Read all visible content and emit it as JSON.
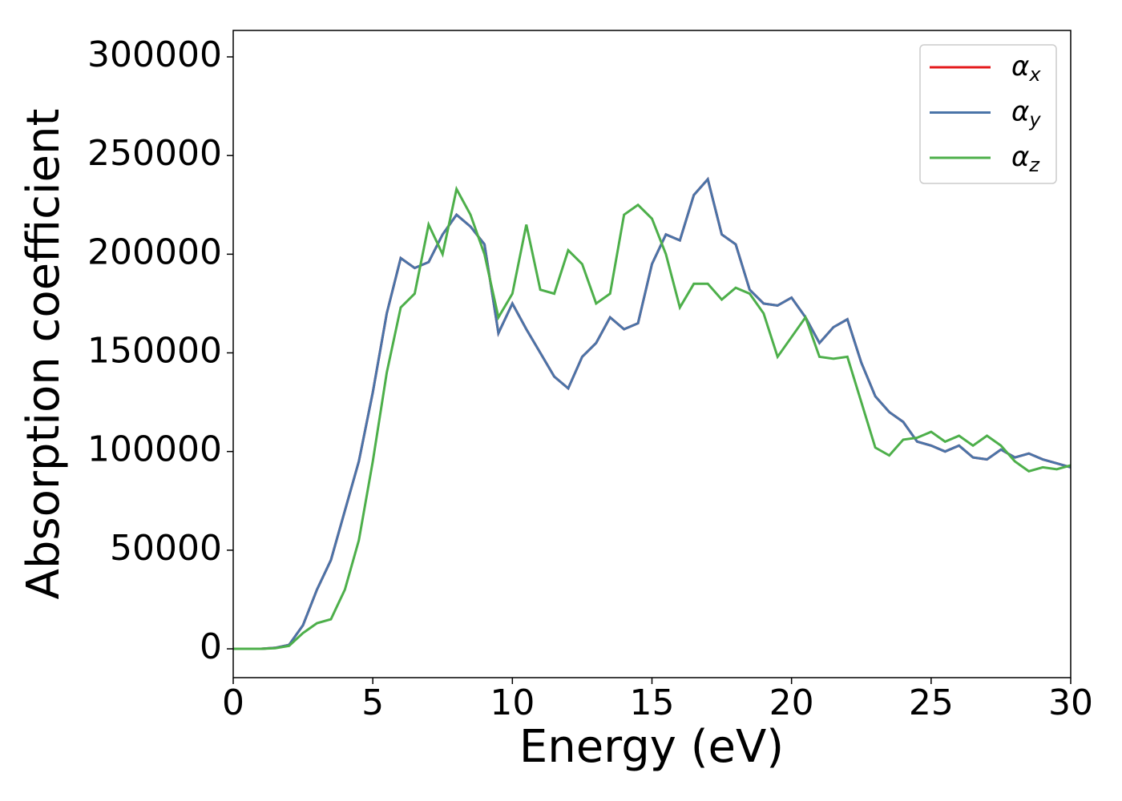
{
  "chart_data": {
    "type": "line",
    "xlabel": "Energy (eV)",
    "ylabel": "Absorption coefficient",
    "x": [
      0,
      0.5,
      1,
      1.5,
      2,
      2.5,
      3,
      3.5,
      4,
      4.5,
      5,
      5.5,
      6,
      6.5,
      7,
      7.5,
      8,
      8.5,
      9,
      9.5,
      10,
      10.5,
      11,
      11.5,
      12,
      12.5,
      13,
      13.5,
      14,
      14.5,
      15,
      15.5,
      16,
      16.5,
      17,
      17.5,
      18,
      18.5,
      19,
      19.5,
      20,
      20.5,
      21,
      21.5,
      22,
      22.5,
      23,
      23.5,
      24,
      24.5,
      25,
      25.5,
      26,
      26.5,
      27,
      27.5,
      28,
      28.5,
      29,
      29.5,
      30
    ],
    "series": [
      {
        "name": "αx",
        "color": "#e41a1c",
        "values": [
          0,
          0,
          0,
          500,
          2000,
          12000,
          30000,
          45000,
          70000,
          95000,
          130000,
          170000,
          198000,
          193000,
          196000,
          210000,
          220000,
          214000,
          205000,
          160000,
          175000,
          162000,
          150000,
          138000,
          132000,
          148000,
          155000,
          168000,
          162000,
          165000,
          195000,
          210000,
          207000,
          230000,
          238000,
          210000,
          205000,
          182000,
          175000,
          174000,
          178000,
          168000,
          155000,
          163000,
          167000,
          145000,
          128000,
          120000,
          115000,
          105000,
          103000,
          100000,
          103000,
          97000,
          96000,
          101000,
          97000,
          99000,
          96000,
          94000,
          92000
        ]
      },
      {
        "name": "αy",
        "color": "#4a74a8",
        "values": [
          0,
          0,
          0,
          500,
          2000,
          12000,
          30000,
          45000,
          70000,
          95000,
          130000,
          170000,
          198000,
          193000,
          196000,
          210000,
          220000,
          214000,
          205000,
          160000,
          175000,
          162000,
          150000,
          138000,
          132000,
          148000,
          155000,
          168000,
          162000,
          165000,
          195000,
          210000,
          207000,
          230000,
          238000,
          210000,
          205000,
          182000,
          175000,
          174000,
          178000,
          168000,
          155000,
          163000,
          167000,
          145000,
          128000,
          120000,
          115000,
          105000,
          103000,
          100000,
          103000,
          97000,
          96000,
          101000,
          97000,
          99000,
          96000,
          94000,
          92000
        ]
      },
      {
        "name": "αz",
        "color": "#4daf4a",
        "values": [
          0,
          0,
          0,
          300,
          1500,
          8000,
          13000,
          15000,
          30000,
          55000,
          95000,
          140000,
          173000,
          180000,
          215000,
          200000,
          233000,
          220000,
          200000,
          168000,
          180000,
          215000,
          182000,
          180000,
          202000,
          195000,
          175000,
          180000,
          220000,
          225000,
          218000,
          200000,
          173000,
          185000,
          185000,
          177000,
          183000,
          180000,
          170000,
          148000,
          158000,
          168000,
          148000,
          147000,
          148000,
          125000,
          102000,
          98000,
          106000,
          107000,
          110000,
          105000,
          108000,
          103000,
          108000,
          103000,
          95000,
          90000,
          92000,
          91000,
          93000
        ]
      }
    ],
    "xlim": [
      0,
      30
    ],
    "xticks": [
      0,
      5,
      10,
      15,
      20,
      25,
      30
    ],
    "ylim": [
      -14600,
      313400
    ],
    "yticks": [
      0,
      50000,
      100000,
      150000,
      200000,
      250000,
      300000
    ],
    "legend": "upper right"
  }
}
